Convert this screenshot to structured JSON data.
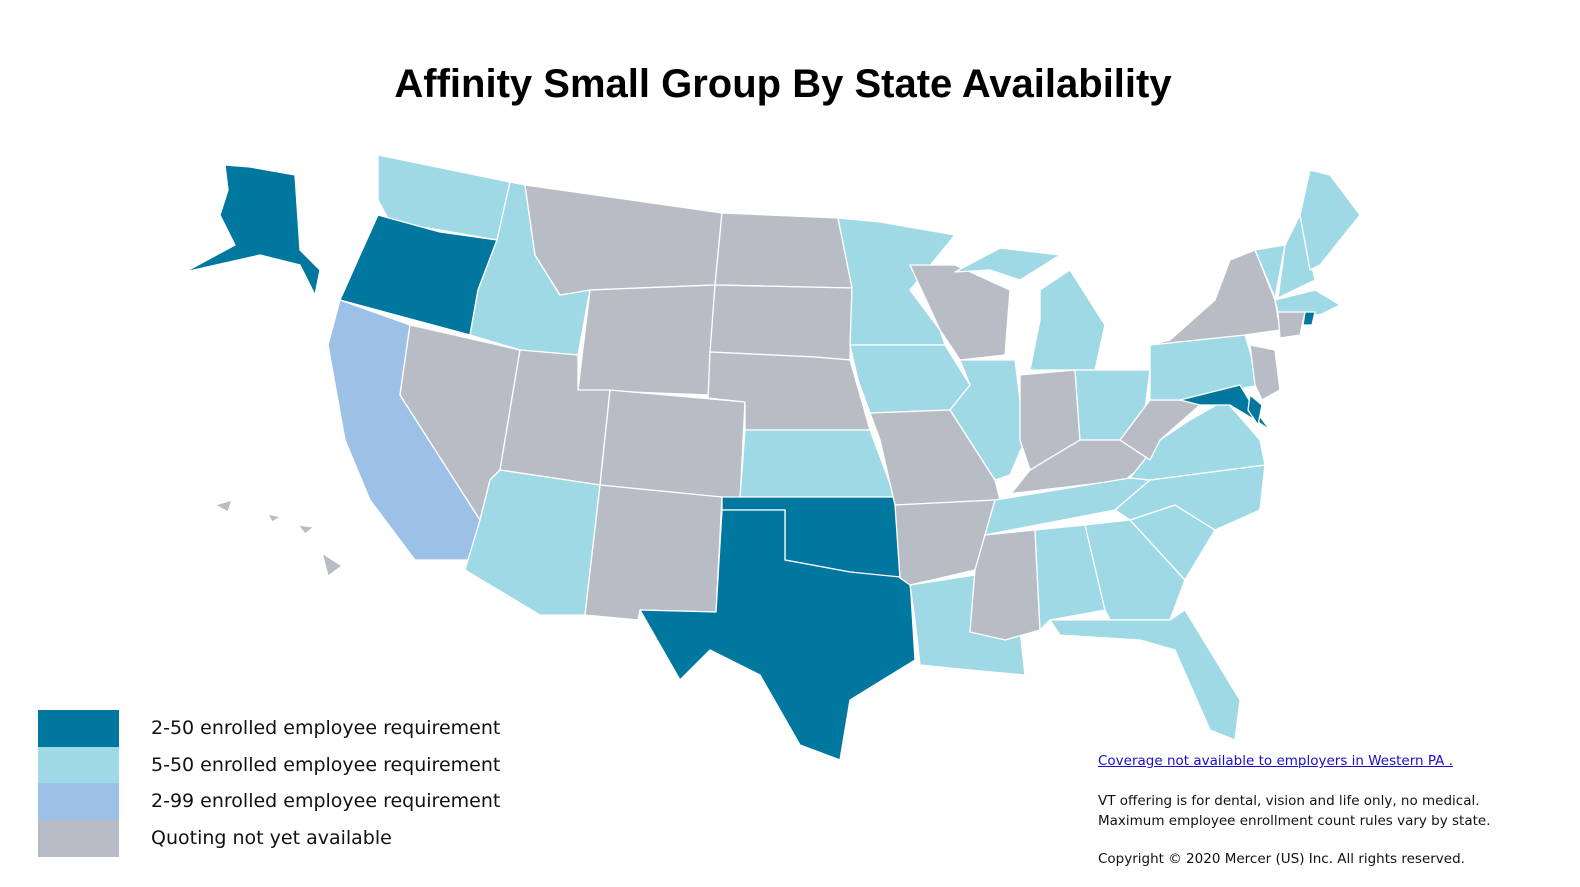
{
  "header": {
    "title": "Affinity Small Group By State Availability"
  },
  "legend": [
    {
      "label": "2-50 enrolled employee requirement",
      "color": "#00779f"
    },
    {
      "label": "5-50 enrolled employee requirement",
      "color": "#9fd9e5"
    },
    {
      "label": "2-99 enrolled employee requirement",
      "color": "#9dc0e6"
    },
    {
      "label": "Quoting not yet available",
      "color": "#b8bcc4"
    }
  ],
  "notes": {
    "link": "Coverage not available to employers in Western PA .",
    "lines": [
      "VT offering is for dental, vision and life only, no medical.",
      "Maximum employee enrollment count rules vary by state."
    ],
    "copyright": "Copyright © 2020 Mercer (US) Inc. All rights reserved."
  }
}
